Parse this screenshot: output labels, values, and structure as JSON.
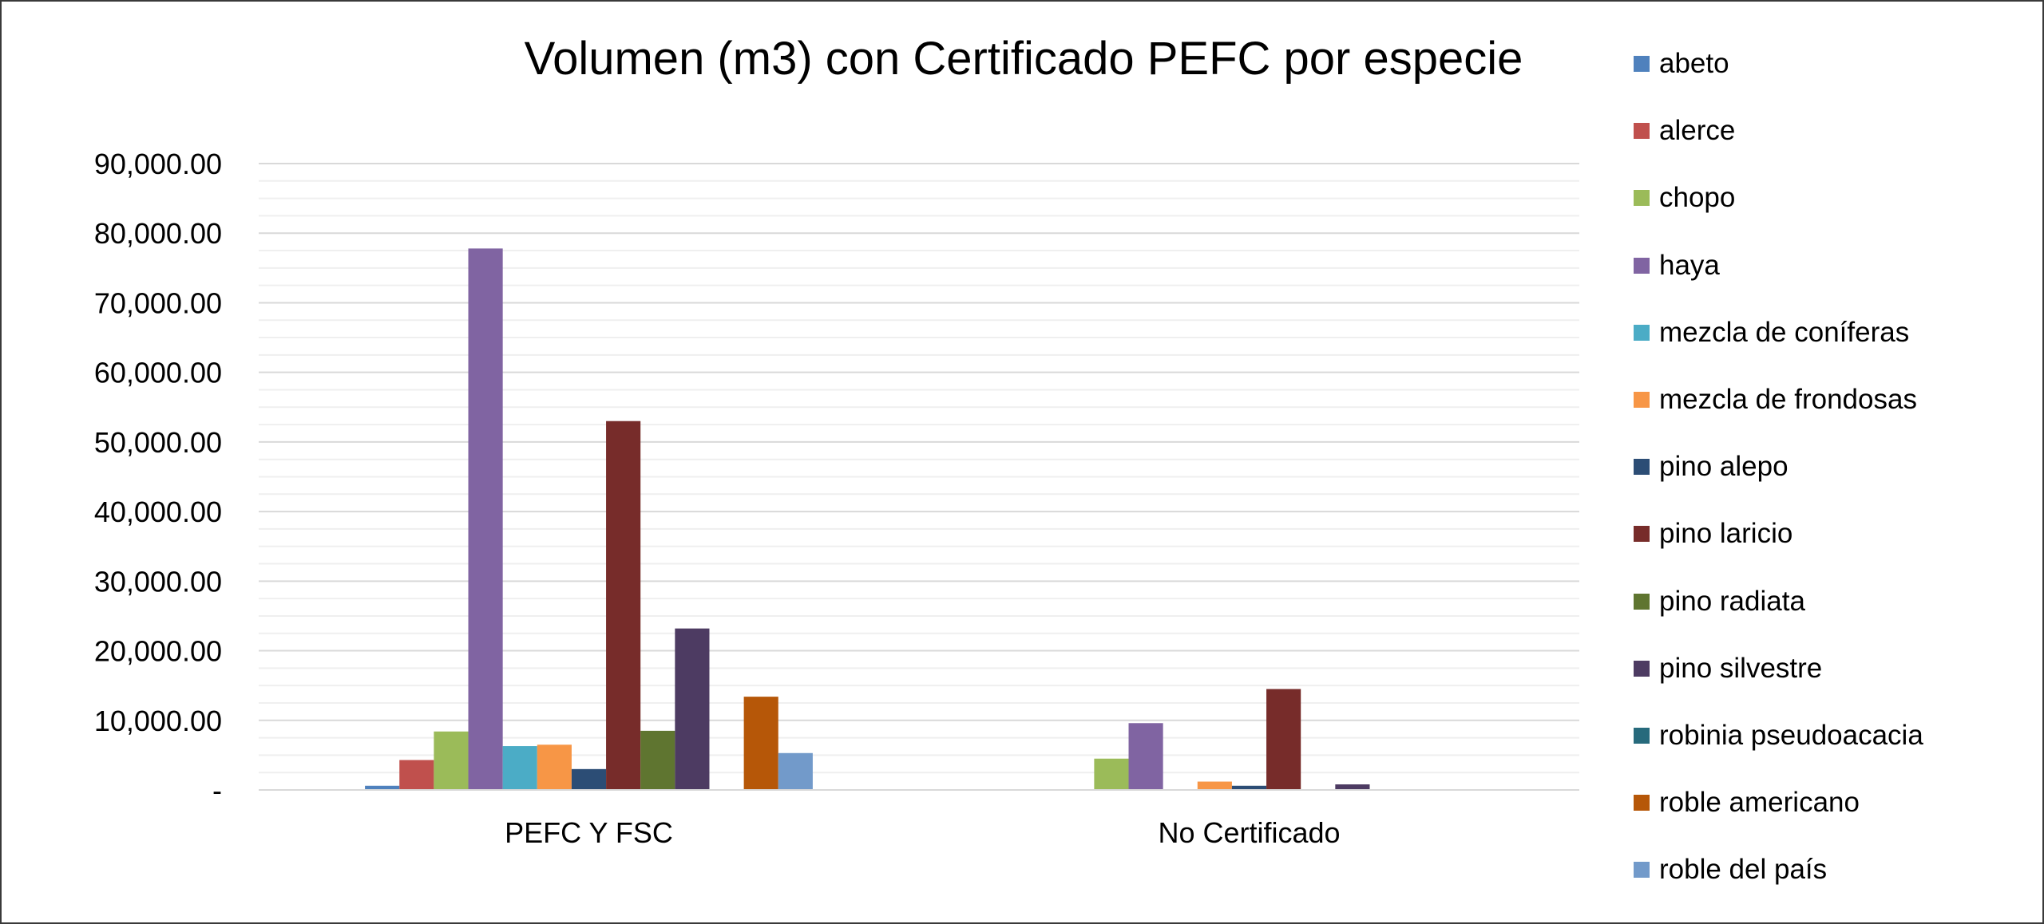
{
  "chart_data": {
    "type": "bar",
    "title": "Volumen (m3) con Certificado PEFC por especie",
    "xlabel": "",
    "ylabel": "",
    "ylim": [
      0,
      90000
    ],
    "yticks": [
      0,
      10000,
      20000,
      30000,
      40000,
      50000,
      60000,
      70000,
      80000,
      90000
    ],
    "ytick_labels": [
      "-",
      "10,000.00",
      "20,000.00",
      "30,000.00",
      "40,000.00",
      "50,000.00",
      "60,000.00",
      "70,000.00",
      "80,000.00",
      "90,000.00"
    ],
    "grid": true,
    "legend_position": "right",
    "categories": [
      "PEFC Y FSC",
      "No Certificado"
    ],
    "series": [
      {
        "name": "abeto",
        "color": "#4F81BD",
        "values": [
          600,
          0
        ]
      },
      {
        "name": "alerce",
        "color": "#C0504D",
        "values": [
          4300,
          0
        ]
      },
      {
        "name": "chopo",
        "color": "#9BBB59",
        "values": [
          8400,
          4500
        ]
      },
      {
        "name": "haya",
        "color": "#8064A2",
        "values": [
          77800,
          9600
        ]
      },
      {
        "name": "mezcla de coníferas",
        "color": "#4BACC6",
        "values": [
          6300,
          0
        ]
      },
      {
        "name": "mezcla de frondosas",
        "color": "#F79646",
        "values": [
          6500,
          1200
        ]
      },
      {
        "name": "pino alepo",
        "color": "#2C4D75",
        "values": [
          3000,
          600
        ]
      },
      {
        "name": "pino laricio",
        "color": "#772C2A",
        "values": [
          53000,
          14500
        ]
      },
      {
        "name": "pino radiata",
        "color": "#5F7530",
        "values": [
          8500,
          0
        ]
      },
      {
        "name": "pino silvestre",
        "color": "#4D3B62",
        "values": [
          23200,
          800
        ]
      },
      {
        "name": "robinia pseudoacacia",
        "color": "#276A7C",
        "values": [
          0,
          0
        ]
      },
      {
        "name": "roble americano",
        "color": "#B65708",
        "values": [
          13400,
          0
        ]
      },
      {
        "name": "roble del país",
        "color": "#729ACA",
        "values": [
          5300,
          0
        ]
      }
    ]
  }
}
